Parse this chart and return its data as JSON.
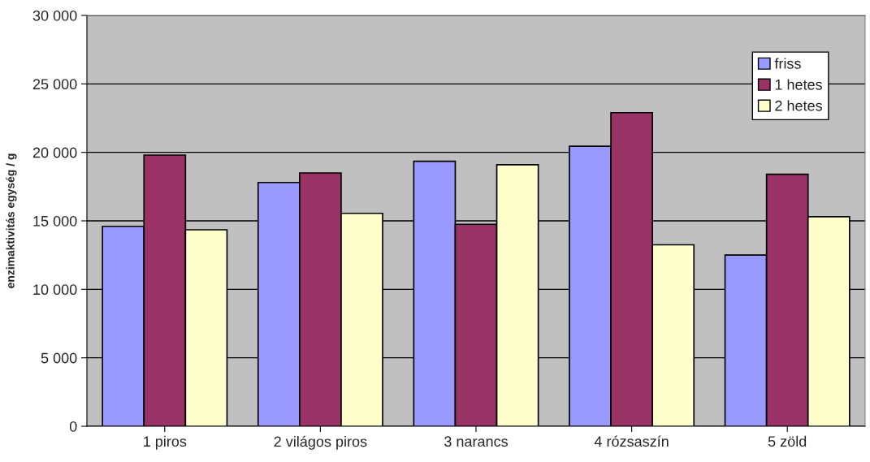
{
  "chart_data": {
    "type": "bar",
    "ylabel": "enzimaktivitás egység / g",
    "categories": [
      "1 piros",
      "2 világos piros",
      "3 narancs",
      "4 rózsaszín",
      "5 zöld"
    ],
    "series": [
      {
        "name": "friss",
        "color": "#9999ff",
        "values": [
          14600,
          17800,
          19350,
          20450,
          12500
        ]
      },
      {
        "name": "1 hetes",
        "color": "#993366",
        "values": [
          19800,
          18500,
          14750,
          22900,
          18400
        ]
      },
      {
        "name": "2 hetes",
        "color": "#ffffcc",
        "values": [
          14350,
          15550,
          19100,
          13250,
          15300
        ]
      }
    ],
    "ylim": [
      0,
      30000
    ],
    "yticks": [
      {
        "value": 0,
        "label": "0"
      },
      {
        "value": 5000,
        "label": "5 000"
      },
      {
        "value": 10000,
        "label": "10 000"
      },
      {
        "value": 15000,
        "label": "15 000"
      },
      {
        "value": 20000,
        "label": "20 000"
      },
      {
        "value": 25000,
        "label": "25 000"
      },
      {
        "value": 30000,
        "label": "30 000"
      }
    ],
    "grid": "y",
    "legend": "top right"
  }
}
